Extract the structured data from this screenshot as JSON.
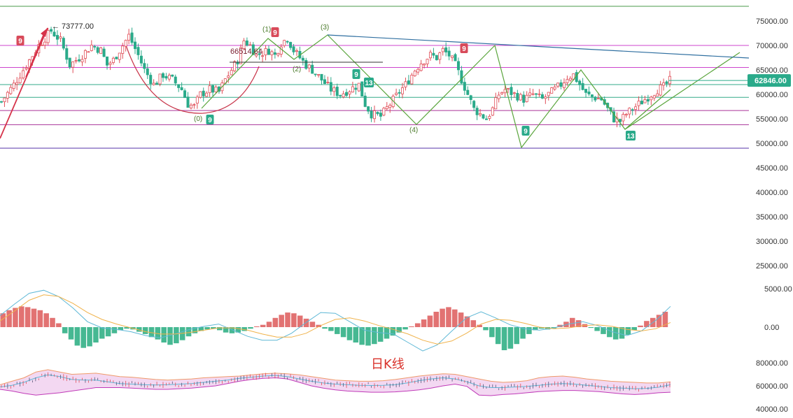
{
  "chart_data": [
    {
      "type": "candlestick",
      "title": "",
      "price_axis": {
        "ticks": [
          "75000.00",
          "70000.00",
          "65000.00",
          "60000.00",
          "55000.00",
          "50000.00",
          "45000.00",
          "40000.00",
          "35000.00",
          "30000.00",
          "25000.00"
        ],
        "ylim": [
          22000,
          77500
        ]
      },
      "current_price": {
        "label": "62846.00",
        "value": 62846
      },
      "annotations": {
        "high_label": "← 73777.00",
        "high_value": 73777,
        "level_label": "66514.64",
        "level_value": 66514.64,
        "wave_labels": [
          "(0)",
          "(1)",
          "(2)",
          "(3)",
          "(4)"
        ],
        "sequential_counts": [
          "9",
          "9",
          "9",
          "13",
          "9",
          "9",
          "9",
          "13"
        ]
      },
      "horizontal_levels": [
        77500,
        70000,
        65500,
        62000,
        59400,
        56700,
        53800,
        49000
      ],
      "candles_close_path": [
        [
          0,
          58500
        ],
        [
          4,
          62000
        ],
        [
          8,
          66000
        ],
        [
          12,
          70000
        ],
        [
          16,
          73000
        ],
        [
          19,
          71000
        ],
        [
          22,
          66000
        ],
        [
          26,
          68000
        ],
        [
          29,
          70000
        ],
        [
          32,
          69000
        ],
        [
          34,
          66000
        ],
        [
          36,
          67000
        ],
        [
          39,
          70000
        ],
        [
          41,
          72000
        ],
        [
          44,
          68000
        ],
        [
          46,
          65000
        ],
        [
          49,
          62000
        ],
        [
          52,
          64000
        ],
        [
          55,
          63000
        ],
        [
          58,
          61000
        ],
        [
          60,
          58000
        ],
        [
          62,
          57500
        ],
        [
          64,
          60000
        ],
        [
          67,
          61000
        ],
        [
          70,
          60500
        ],
        [
          72,
          63000
        ],
        [
          74,
          65000
        ],
        [
          76,
          67000
        ],
        [
          78,
          71000
        ],
        [
          80,
          70000
        ],
        [
          82,
          68000
        ],
        [
          84,
          68500
        ],
        [
          86,
          69000
        ],
        [
          88,
          68000
        ],
        [
          90,
          70500
        ],
        [
          92,
          71500
        ],
        [
          94,
          69000
        ],
        [
          96,
          67500
        ],
        [
          98,
          66000
        ],
        [
          100,
          65000
        ],
        [
          103,
          63000
        ],
        [
          106,
          61000
        ],
        [
          109,
          60000
        ],
        [
          112,
          61000
        ],
        [
          115,
          62000
        ],
        [
          117,
          58000
        ],
        [
          119,
          56000
        ],
        [
          122,
          55500
        ],
        [
          125,
          58000
        ],
        [
          128,
          60500
        ],
        [
          130,
          62000
        ],
        [
          133,
          65000
        ],
        [
          135,
          66500
        ],
        [
          138,
          68000
        ],
        [
          140,
          67500
        ],
        [
          142,
          69000
        ],
        [
          144,
          68000
        ],
        [
          146,
          66000
        ],
        [
          148,
          63000
        ],
        [
          150,
          60000
        ],
        [
          152,
          57000
        ],
        [
          154,
          56000
        ],
        [
          156,
          55000
        ],
        [
          158,
          57000
        ],
        [
          160,
          60000
        ],
        [
          162,
          61000
        ],
        [
          165,
          60000
        ],
        [
          168,
          59000
        ],
        [
          171,
          60000
        ],
        [
          174,
          59000
        ],
        [
          177,
          60500
        ],
        [
          180,
          62000
        ],
        [
          182,
          63500
        ],
        [
          184,
          64000
        ],
        [
          186,
          62000
        ],
        [
          188,
          60000
        ],
        [
          190,
          59500
        ],
        [
          193,
          59000
        ],
        [
          195,
          57000
        ],
        [
          197,
          55000
        ],
        [
          199,
          54500
        ],
        [
          201,
          56000
        ],
        [
          203,
          57000
        ],
        [
          205,
          58000
        ],
        [
          207,
          59000
        ],
        [
          209,
          60000
        ],
        [
          211,
          61000
        ],
        [
          213,
          61500
        ],
        [
          215,
          62800
        ]
      ]
    },
    {
      "type": "bar",
      "title": "",
      "indicator_axis": {
        "ticks": [
          "5000.00",
          "0.00"
        ],
        "ylim": [
          -5200,
          9000
        ]
      },
      "histogram": [
        1800,
        2200,
        2500,
        2700,
        2600,
        2400,
        2200,
        1800,
        1200,
        500,
        -800,
        -1600,
        -2400,
        -2700,
        -2500,
        -2000,
        -1500,
        -1200,
        -800,
        -400,
        -200,
        -300,
        -600,
        -900,
        -1300,
        -1600,
        -2000,
        -2300,
        -2100,
        -1700,
        -1200,
        -800,
        -500,
        -300,
        -200,
        -400,
        -700,
        -800,
        -700,
        -500,
        -200,
        100,
        300,
        700,
        1200,
        1600,
        1900,
        1800,
        1500,
        1100,
        700,
        300,
        -200,
        -500,
        -900,
        -1300,
        -1700,
        -2000,
        -2300,
        -2400,
        -2200,
        -1900,
        -1500,
        -1100,
        -700,
        -300,
        100,
        500,
        1000,
        1500,
        2000,
        2400,
        2600,
        2300,
        1900,
        1400,
        900,
        300,
        -400,
        -1300,
        -2200,
        -3000,
        -2800,
        -2200,
        -1500,
        -900,
        -400,
        -200,
        -300,
        -200,
        300,
        700,
        1200,
        900,
        400,
        -100,
        -500,
        -900,
        -1300,
        -1600,
        -1500,
        -1000,
        -400,
        200,
        800,
        1200,
        1600,
        2000
      ],
      "fast_line": [
        1500,
        3000,
        4400,
        4800,
        4000,
        2500,
        700,
        -100,
        -300,
        -600,
        -1100,
        -1400,
        -900,
        -300,
        100,
        400,
        -400,
        -1200,
        -1700,
        -1700,
        -800,
        600,
        1900,
        1800,
        700,
        -400,
        -700,
        -900,
        -2000,
        -3100,
        -2300,
        -500,
        1200,
        2000,
        1200,
        300,
        -200,
        -400,
        -100,
        400,
        700,
        200,
        -600,
        -1100,
        -500,
        900,
        2700
      ],
      "slow_line": [
        800,
        2100,
        3500,
        4200,
        4000,
        3100,
        1900,
        1000,
        400,
        -100,
        -600,
        -900,
        -900,
        -700,
        -400,
        -100,
        -100,
        -400,
        -900,
        -1300,
        -1300,
        -800,
        200,
        1000,
        1200,
        800,
        200,
        -300,
        -900,
        -1700,
        -2200,
        -1800,
        -800,
        400,
        1000,
        900,
        500,
        0,
        -200,
        -100,
        200,
        300,
        100,
        -300,
        -500,
        -200,
        600
      ]
    },
    {
      "type": "line",
      "title": "日K线",
      "band_axis": {
        "ticks": [
          "80000.00",
          "60000.00",
          "40000.00"
        ],
        "ylim": [
          38000,
          84000
        ]
      },
      "upper_band": [
        61000,
        64000,
        67000,
        72000,
        74000,
        72000,
        70000,
        70500,
        71000,
        69500,
        68000,
        67500,
        66500,
        65500,
        65000,
        65500,
        66000,
        67000,
        67500,
        68000,
        68500,
        69500,
        70500,
        71000,
        70500,
        69500,
        68000,
        66500,
        65000,
        64500,
        64000,
        64000,
        64500,
        65500,
        67000,
        68500,
        69500,
        70500,
        70000,
        68000,
        66000,
        64000,
        63000,
        63500,
        64500,
        67000,
        68000,
        68500,
        67500,
        66000,
        65000,
        64000,
        63500,
        63000,
        62500,
        62500,
        63500
      ],
      "middle_band": [
        59000,
        60500,
        63000,
        67000,
        69500,
        68000,
        65500,
        65000,
        65000,
        63500,
        62000,
        61500,
        61000,
        60800,
        61000,
        61500,
        62000,
        63000,
        64000,
        65000,
        66500,
        67500,
        68500,
        69000,
        68000,
        66000,
        64000,
        62500,
        61500,
        61000,
        60500,
        60300,
        60500,
        61000,
        62500,
        64500,
        66000,
        67000,
        66000,
        63500,
        60000,
        58500,
        58500,
        59000,
        59500,
        60500,
        61500,
        62000,
        61500,
        60500,
        59500,
        58500,
        58000,
        57500,
        57800,
        58800,
        61000
      ],
      "lower_band": [
        57000,
        55500,
        53500,
        52000,
        53000,
        54000,
        55500,
        57000,
        58500,
        58500,
        58500,
        58000,
        57500,
        57000,
        57000,
        57500,
        58000,
        59000,
        60000,
        62000,
        64000,
        65500,
        66500,
        67000,
        66000,
        63000,
        60000,
        58000,
        56500,
        55500,
        55000,
        54500,
        54500,
        54800,
        55500,
        56500,
        58000,
        60000,
        61500,
        59500,
        52000,
        51500,
        52500,
        53000,
        54000,
        55000,
        55500,
        56000,
        56000,
        55500,
        55000,
        54000,
        53000,
        52500,
        53000,
        54000,
        54500
      ]
    }
  ]
}
